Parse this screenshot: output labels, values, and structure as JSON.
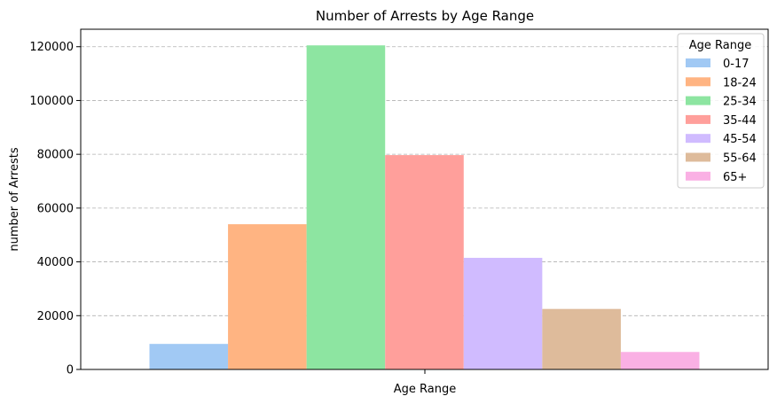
{
  "chart_data": {
    "type": "bar",
    "title": "Number of Arrests by Age Range",
    "xlabel": "Age Range",
    "ylabel": "number of Arrests",
    "ylim": [
      0,
      126500
    ],
    "yticks": [
      0,
      20000,
      40000,
      60000,
      80000,
      100000,
      120000
    ],
    "grid": "y-dashed",
    "legend": {
      "title": "Age Range",
      "placement": "top-right"
    },
    "series": [
      {
        "name": "0-17",
        "value": 9500,
        "color": "#a1c9f4"
      },
      {
        "name": "18-24",
        "value": 54000,
        "color": "#ffb482"
      },
      {
        "name": "25-34",
        "value": 120500,
        "color": "#8de5a1"
      },
      {
        "name": "35-44",
        "value": 79700,
        "color": "#ff9f9b"
      },
      {
        "name": "45-54",
        "value": 41500,
        "color": "#d0bbff"
      },
      {
        "name": "55-64",
        "value": 22500,
        "color": "#debb9b"
      },
      {
        "name": "65+",
        "value": 6500,
        "color": "#fab0e4"
      }
    ]
  }
}
